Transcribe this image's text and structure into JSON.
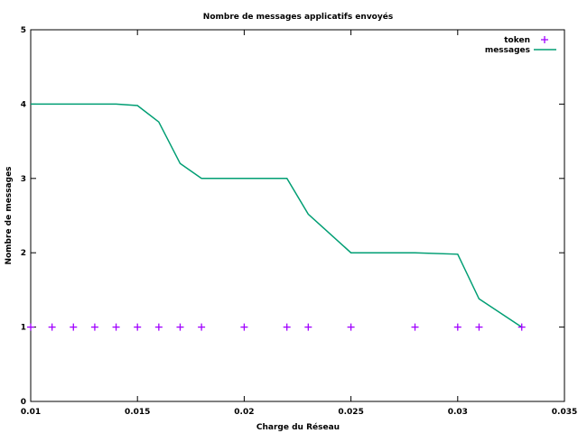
{
  "chart_data": {
    "type": "line",
    "title": "Nombre de messages applicatifs envoyés",
    "xlabel": "Charge du Réseau",
    "ylabel": "Nombre de messages",
    "xlim": [
      0.01,
      0.035
    ],
    "ylim": [
      0,
      5
    ],
    "xticks": [
      "0.01",
      "0.015",
      "0.02",
      "0.025",
      "0.03",
      "0.035"
    ],
    "xtick_values": [
      0.01,
      0.015,
      0.02,
      0.025,
      0.03,
      0.035
    ],
    "yticks": [
      "0",
      "1",
      "2",
      "3",
      "4",
      "5"
    ],
    "ytick_values": [
      0,
      1,
      2,
      3,
      4,
      5
    ],
    "grid": false,
    "legend_position": "top-right",
    "series": [
      {
        "name": "token",
        "style": "points",
        "marker": "plus",
        "color": "#a000ff",
        "x": [
          0.01,
          0.011,
          0.012,
          0.013,
          0.014,
          0.015,
          0.016,
          0.017,
          0.018,
          0.02,
          0.022,
          0.023,
          0.025,
          0.028,
          0.03,
          0.031,
          0.033
        ],
        "y": [
          1,
          1,
          1,
          1,
          1,
          1,
          1,
          1,
          1,
          1,
          1,
          1,
          1,
          1,
          1,
          1,
          1
        ]
      },
      {
        "name": "messages",
        "style": "line",
        "color": "#009e73",
        "x": [
          0.01,
          0.014,
          0.015,
          0.016,
          0.017,
          0.018,
          0.02,
          0.022,
          0.023,
          0.025,
          0.028,
          0.03,
          0.031,
          0.033
        ],
        "y": [
          4,
          4,
          3.98,
          3.76,
          3.2,
          3,
          3,
          3,
          2.52,
          2,
          2,
          1.98,
          1.38,
          1
        ]
      }
    ]
  }
}
